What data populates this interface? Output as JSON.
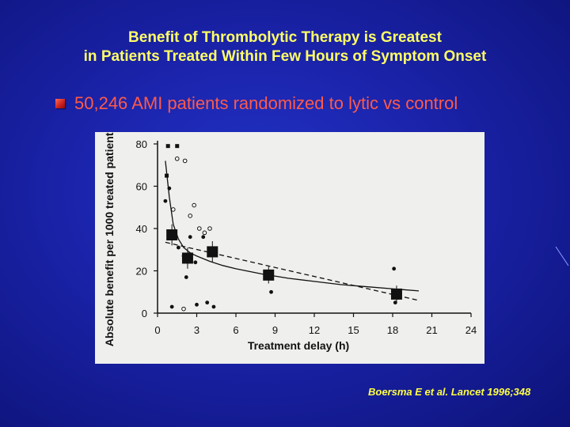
{
  "slide": {
    "title_line1": "Benefit of Thrombolytic Therapy is Greatest",
    "title_line2": "in Patients Treated Within Few Hours of Symptom Onset",
    "bullet": "50,246 AMI patients randomized to lytic vs control",
    "citation": "Boersma E et al.  Lancet 1996;348",
    "colors": {
      "title": "#ffff66",
      "bullet": "#ff5a4a",
      "citation": "#ffff44",
      "background": "#1a22a8"
    }
  },
  "chart_data": {
    "type": "scatter",
    "xlabel": "Treatment delay (h)",
    "ylabel": "Absolute benefit per 1000 treated patients",
    "xlim": [
      0,
      24
    ],
    "ylim": [
      0,
      80
    ],
    "xticks": [
      "0",
      "3",
      "6",
      "9",
      "12",
      "15",
      "18",
      "21",
      "24"
    ],
    "yticks": [
      "0",
      "20",
      "40",
      "60",
      "80"
    ],
    "grid": false,
    "series": [
      {
        "marker": "large-square",
        "x": [
          1.1,
          2.3,
          4.2,
          8.5,
          18.3
        ],
        "y": [
          37,
          26,
          29,
          18,
          9
        ],
        "err": [
          5,
          5,
          5,
          4,
          4
        ]
      },
      {
        "marker": "small-square",
        "x": [
          0.7,
          0.8,
          1.5
        ],
        "y": [
          65,
          79,
          79
        ]
      },
      {
        "marker": "filled-circle",
        "x": [
          0.6,
          0.9,
          1.1,
          1.3,
          1.6,
          2.0,
          2.2,
          2.5,
          2.9,
          3.0,
          3.5,
          3.8,
          4.3,
          8.7,
          18.1,
          18.2
        ],
        "y": [
          53,
          59,
          3,
          37,
          31,
          27,
          17,
          36,
          24,
          4,
          36,
          5,
          3,
          10,
          21,
          5
        ]
      },
      {
        "marker": "open-circle",
        "x": [
          1.2,
          1.5,
          2.1,
          2.5,
          2.8,
          3.2,
          3.6,
          4.0,
          2.0
        ],
        "y": [
          49,
          73,
          72,
          46,
          51,
          40,
          38,
          40,
          2
        ]
      }
    ],
    "fit_curve": {
      "style": "solid",
      "x": [
        0.6,
        0.9,
        1.2,
        1.6,
        2.0,
        2.5,
        3.0,
        4.0,
        5.0,
        6.0,
        8.0,
        10.0,
        12.0,
        14.0,
        16.0,
        18.0,
        20.0
      ],
      "y": [
        72,
        55,
        42,
        35,
        31,
        28.5,
        27,
        24.5,
        22.5,
        21,
        18.5,
        16.5,
        15,
        13.5,
        12.5,
        11.5,
        10.5
      ]
    },
    "linear_fit": {
      "style": "dashed",
      "x": [
        0.6,
        20
      ],
      "y": [
        33.5,
        6
      ]
    }
  }
}
